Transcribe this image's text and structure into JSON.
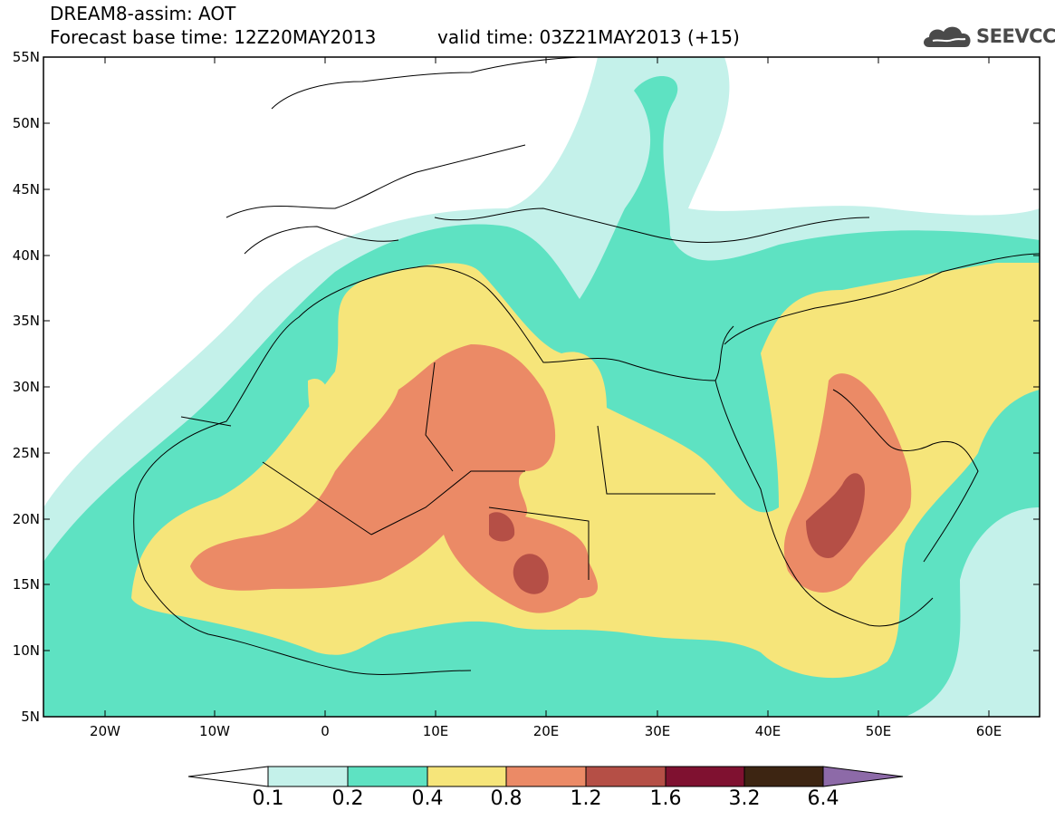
{
  "title": {
    "line1": "DREAM8-assim: AOT",
    "line2": "Forecast base time: 12Z20MAY2013",
    "valid": "valid time: 03Z21MAY2013 (+15)"
  },
  "logo": {
    "text": "SEEVCCC",
    "icon": "cloud-icon"
  },
  "map": {
    "lon_range": [
      -25,
      65
    ],
    "lat_range": [
      5,
      55
    ],
    "lat_labels": [
      "55N",
      "50N",
      "45N",
      "40N",
      "35N",
      "30N",
      "25N",
      "20N",
      "15N",
      "10N",
      "5N"
    ],
    "lon_labels": [
      "20W",
      "10W",
      "0",
      "10E",
      "20E",
      "30E",
      "40E",
      "50E",
      "60E"
    ]
  },
  "colorbar": {
    "levels": [
      "0.1",
      "0.2",
      "0.4",
      "0.8",
      "1.2",
      "1.6",
      "3.2",
      "6.4"
    ],
    "colors": [
      "#ffffff",
      "#c4f1ea",
      "#5ee2c2",
      "#f6e57a",
      "#eb8a66",
      "#b54f46",
      "#7f1130",
      "#3d2512",
      "#8d6aa8"
    ]
  }
}
